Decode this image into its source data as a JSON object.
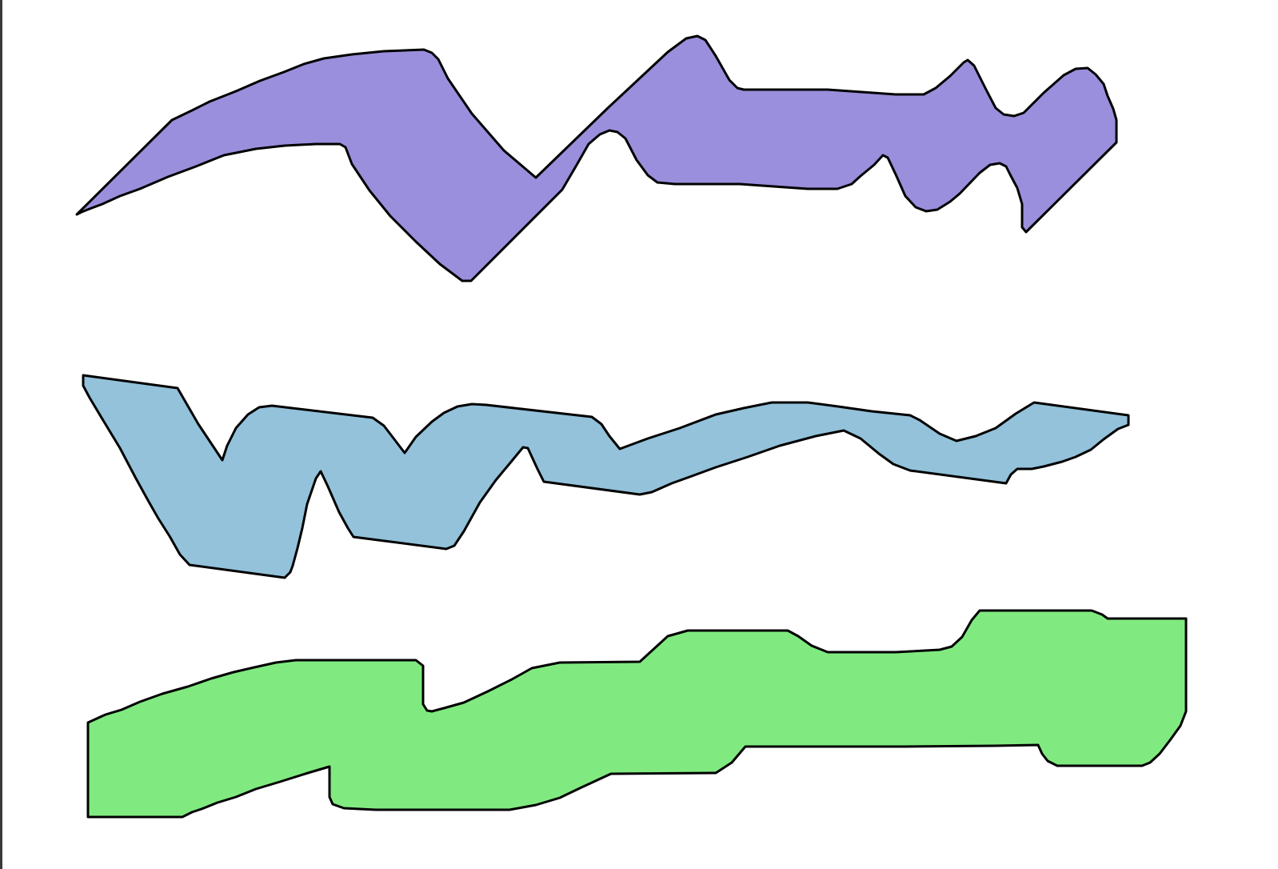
{
  "diagram": {
    "background": "#ffffff",
    "outline_color": "#000000",
    "frame_edge_color": "#3a3a3a",
    "shapes": [
      {
        "name": "purple-shape",
        "fill": "#9a8fdc"
      },
      {
        "name": "blue-shape",
        "fill": "#93c2da"
      },
      {
        "name": "green-shape",
        "fill": "#80ea80"
      }
    ]
  }
}
